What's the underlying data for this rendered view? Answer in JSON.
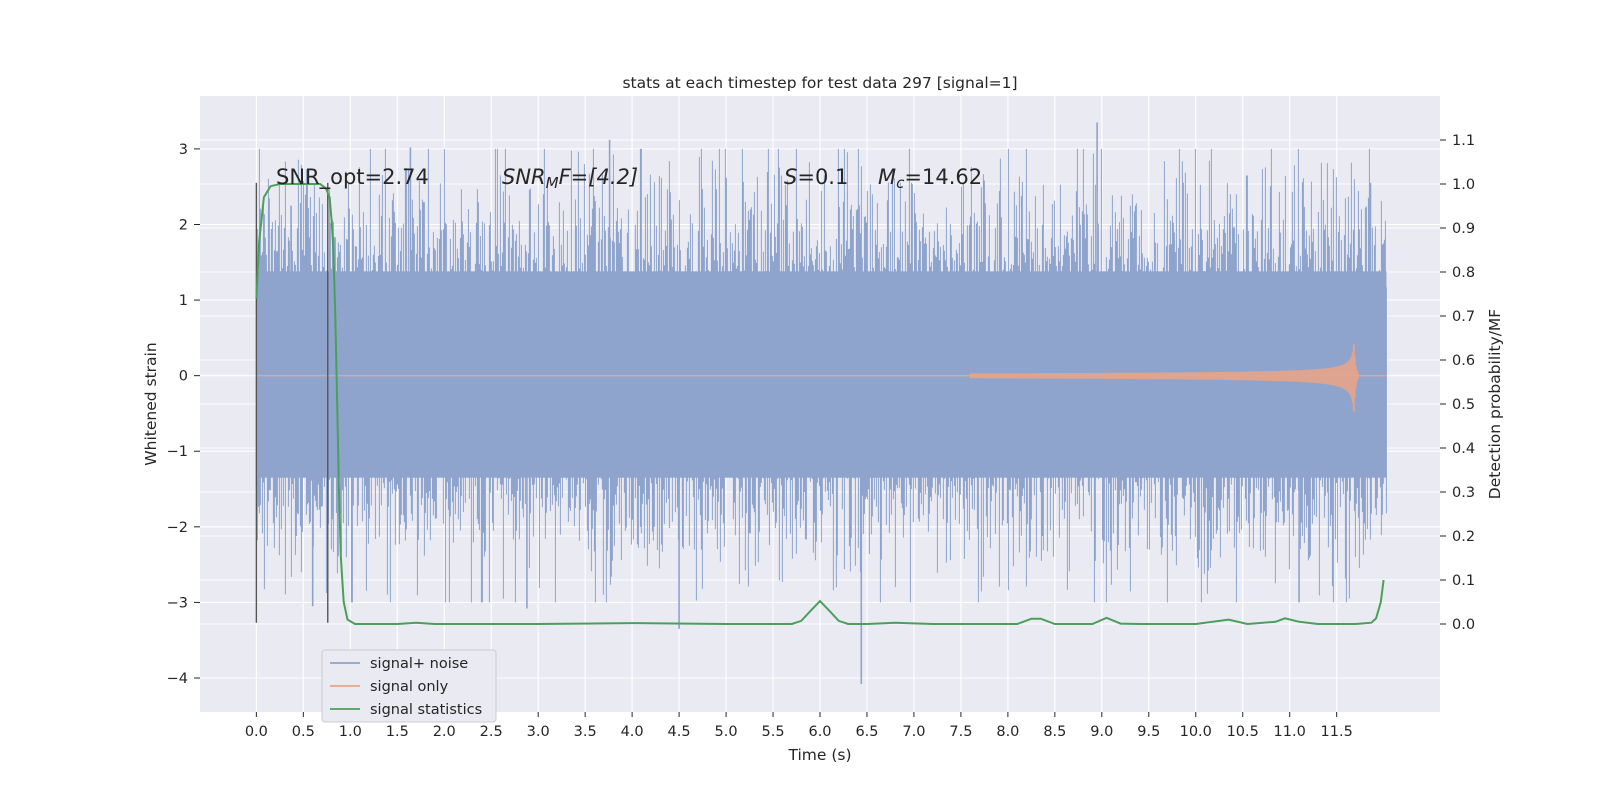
{
  "chart_data": {
    "type": "line",
    "title": "stats at each timestep for test data 297 [signal=1]",
    "xlabel": "Time (s)",
    "ylabel_left": "Whitened strain",
    "ylabel_right": "Detection probability/MF",
    "xlim": [
      -0.6,
      12.6
    ],
    "ylim_left": [
      -4.45,
      3.7
    ],
    "ylim_right": [
      -0.2,
      1.2
    ],
    "grid": true,
    "xticks": [
      "0.0",
      "0.5",
      "1.0",
      "1.5",
      "2.0",
      "2.5",
      "3.0",
      "3.5",
      "4.0",
      "4.5",
      "5.0",
      "5.5",
      "6.0",
      "6.5",
      "7.0",
      "7.5",
      "8.0",
      "8.5",
      "9.0",
      "9.5",
      "10.0",
      "10.5",
      "11.0",
      "11.5"
    ],
    "xtick_values": [
      0,
      0.5,
      1,
      1.5,
      2,
      2.5,
      3,
      3.5,
      4,
      4.5,
      5,
      5.5,
      6,
      6.5,
      7,
      7.5,
      8,
      8.5,
      9,
      9.5,
      10,
      10.5,
      11,
      11.5
    ],
    "yticks_left": [
      "3",
      "2",
      "1",
      "0",
      "−1",
      "−2",
      "−3",
      "−4"
    ],
    "ytick_values_left": [
      3,
      2,
      1,
      0,
      -1,
      -2,
      -3,
      -4
    ],
    "yticks_right": [
      "1.1",
      "1.0",
      "0.9",
      "0.8",
      "0.7",
      "0.6",
      "0.5",
      "0.4",
      "0.3",
      "0.2",
      "0.1",
      "0.0"
    ],
    "ytick_values_right": [
      1.1,
      1.0,
      0.9,
      0.8,
      0.7,
      0.6,
      0.5,
      0.4,
      0.3,
      0.2,
      0.1,
      0.0
    ],
    "legend_position": "lower-left",
    "series": [
      {
        "name": "signal+ noise",
        "axis": "left",
        "color": "#8fa4cc",
        "x_range": [
          0,
          12.03
        ],
        "typical_band": [
          -1.35,
          1.38
        ],
        "peak_extremes": [
          {
            "x": 0.37,
            "y": 2.25
          },
          {
            "x": 0.6,
            "y": -3.05
          },
          {
            "x": 1.64,
            "y": 3.02
          },
          {
            "x": 2.88,
            "y": -3.08
          },
          {
            "x": 3.76,
            "y": 3.12
          },
          {
            "x": 4.5,
            "y": -3.35
          },
          {
            "x": 6.44,
            "y": -4.08
          },
          {
            "x": 6.55,
            "y": -0.9
          },
          {
            "x": 8.95,
            "y": 3.35
          },
          {
            "x": 11.1,
            "y": -3.0
          },
          {
            "x": 11.86,
            "y": 2.55
          }
        ]
      },
      {
        "name": "signal only",
        "axis": "left",
        "color": "#e6a48a",
        "chirp_start": 7.6,
        "chirp_peak_time": 11.69,
        "peak_amplitude": 0.42
      },
      {
        "name": "signal statistics",
        "axis": "right",
        "color": "#4aa05a",
        "points": [
          [
            0.0,
            0.74
          ],
          [
            0.03,
            0.87
          ],
          [
            0.08,
            0.97
          ],
          [
            0.15,
            0.995
          ],
          [
            0.25,
            1.0
          ],
          [
            0.4,
            1.0
          ],
          [
            0.55,
            1.0
          ],
          [
            0.68,
            1.0
          ],
          [
            0.74,
            0.99
          ],
          [
            0.78,
            0.97
          ],
          [
            0.8,
            0.92
          ],
          [
            0.82,
            0.85
          ],
          [
            0.84,
            0.7
          ],
          [
            0.86,
            0.5
          ],
          [
            0.88,
            0.3
          ],
          [
            0.9,
            0.15
          ],
          [
            0.93,
            0.05
          ],
          [
            0.97,
            0.01
          ],
          [
            1.05,
            0.0
          ],
          [
            1.5,
            0.0
          ],
          [
            1.7,
            0.003
          ],
          [
            1.9,
            0.0
          ],
          [
            3.0,
            0.0
          ],
          [
            4.0,
            0.002
          ],
          [
            5.0,
            0.0
          ],
          [
            5.7,
            0.0
          ],
          [
            5.8,
            0.007
          ],
          [
            5.9,
            0.03
          ],
          [
            6.0,
            0.052
          ],
          [
            6.1,
            0.03
          ],
          [
            6.2,
            0.007
          ],
          [
            6.3,
            0.0
          ],
          [
            6.5,
            0.0
          ],
          [
            6.8,
            0.003
          ],
          [
            7.2,
            0.0
          ],
          [
            8.1,
            0.0
          ],
          [
            8.25,
            0.012
          ],
          [
            8.35,
            0.012
          ],
          [
            8.5,
            0.0
          ],
          [
            8.9,
            0.0
          ],
          [
            9.05,
            0.014
          ],
          [
            9.2,
            0.001
          ],
          [
            9.4,
            0.0
          ],
          [
            10.0,
            0.0
          ],
          [
            10.35,
            0.01
          ],
          [
            10.55,
            0.0
          ],
          [
            10.85,
            0.005
          ],
          [
            10.95,
            0.013
          ],
          [
            11.1,
            0.005
          ],
          [
            11.3,
            0.0
          ],
          [
            11.7,
            0.0
          ],
          [
            11.87,
            0.003
          ],
          [
            11.92,
            0.013
          ],
          [
            11.97,
            0.05
          ],
          [
            12.0,
            0.1
          ]
        ]
      }
    ],
    "vertical_markers": [
      {
        "x": 0.0,
        "y_range_left": [
          -3.27,
          2.55
        ]
      },
      {
        "x": 0.76,
        "y_range_left": [
          -3.27,
          2.55
        ]
      }
    ],
    "annotations": {
      "snr_opt": "SNR_opt=2.74",
      "snr_mf_base": "SNR",
      "snr_mf_sub": "M",
      "snr_mf_rest": "F=[4.2]",
      "s_var": "S",
      "s_rest": "=0.1",
      "mc_var": "M",
      "mc_sub": "c",
      "mc_rest": "=14.62"
    },
    "colors": {
      "axes_bg": "#eaeaf2",
      "grid": "#ffffff",
      "vline": "#555555"
    }
  }
}
